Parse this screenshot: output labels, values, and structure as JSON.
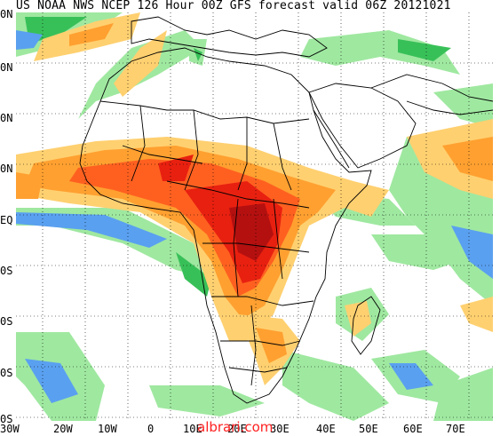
{
  "title": "US NOAA NWS NCEP 126 Hour 00Z GFS forecast valid 06Z 20121021",
  "lat_labels": [
    "0N",
    "0N",
    "0N",
    "0N",
    "EQ",
    "0S",
    "0S",
    "0S",
    "0S"
  ],
  "lon_labels": [
    "30W",
    "20W",
    "10W",
    "0",
    "10E",
    "20E",
    "30E",
    "40E",
    "50E",
    "60E",
    "70E"
  ],
  "watermark": "albrari.com",
  "colors": {
    "ocean": "#ffffff",
    "land_border": "#000000",
    "grid": "#000000",
    "precip_light": [
      "#9fe8a0",
      "#38c058",
      "#5aa0f0",
      "#2f5ee8"
    ],
    "precip_heavy": [
      "#ffd070",
      "#ffa030",
      "#ff6020",
      "#e82010",
      "#b41010"
    ]
  }
}
